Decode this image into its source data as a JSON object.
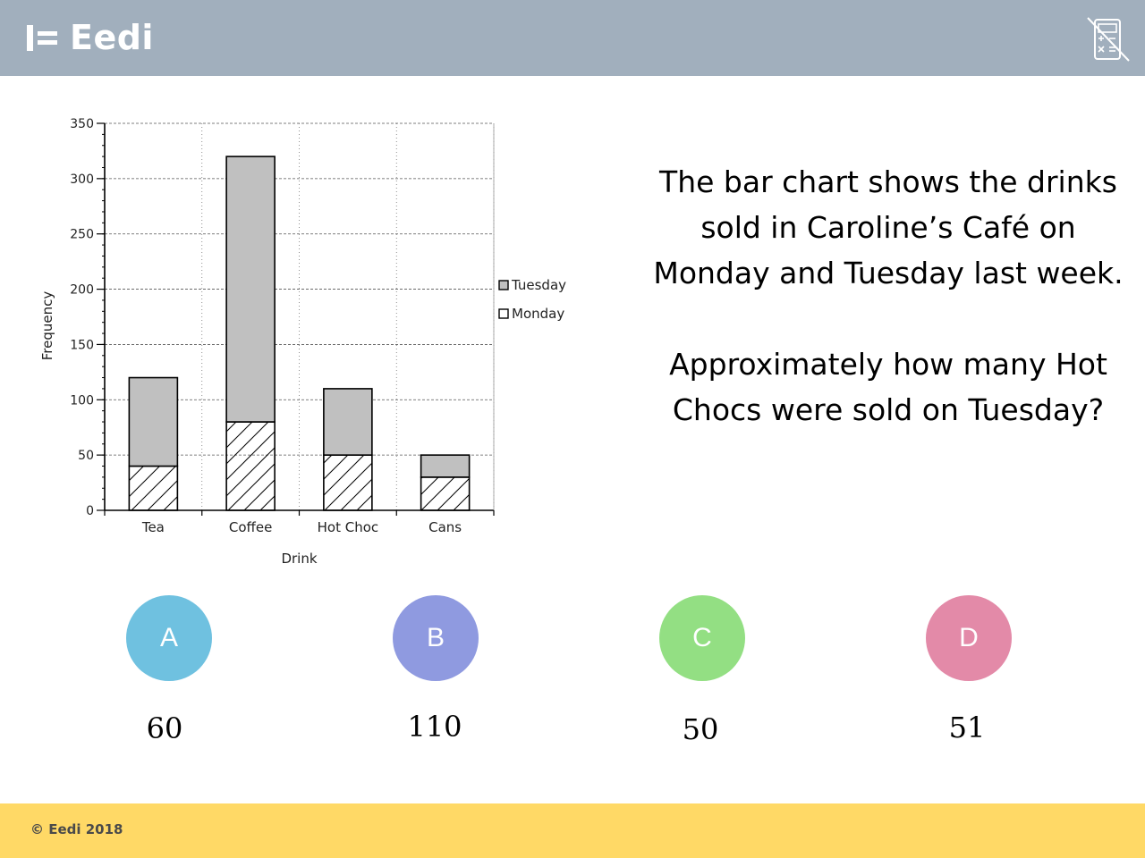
{
  "header": {
    "logo_text": "Eedi",
    "calculator_icon": "no-calculator-icon",
    "background": "#a1afbd"
  },
  "question": {
    "line1": "The bar chart shows the drinks sold in Caroline’s Café on Monday and Tuesday last week.",
    "line2": "Approximately how many Hot Chocs were sold on Tuesday?"
  },
  "options": [
    {
      "letter": "A",
      "answer": "60",
      "color": "#6fc1e0"
    },
    {
      "letter": "B",
      "answer": "110",
      "color": "#8f9ae0"
    },
    {
      "letter": "C",
      "answer": "50",
      "color": "#93df83"
    },
    {
      "letter": "D",
      "answer": "51",
      "color": "#e38aa8"
    }
  ],
  "footer": {
    "text": "© Eedi 2018",
    "background": "#ffd966"
  },
  "chart_data": {
    "type": "bar",
    "stacked": true,
    "categories": [
      "Tea",
      "Coffee",
      "Hot Choc",
      "Cans"
    ],
    "series": [
      {
        "name": "Monday",
        "values": [
          40,
          80,
          50,
          30
        ],
        "fill": "hatched"
      },
      {
        "name": "Tuesday",
        "values": [
          80,
          240,
          60,
          20
        ],
        "fill": "#c0c0c0"
      }
    ],
    "xlabel": "Drink",
    "ylabel": "Frequency",
    "ylim": [
      0,
      350
    ],
    "yticks": [
      0,
      50,
      100,
      150,
      200,
      250,
      300,
      350
    ],
    "grid": true,
    "legend": "right",
    "legend_order": [
      "Tuesday",
      "Monday"
    ]
  }
}
